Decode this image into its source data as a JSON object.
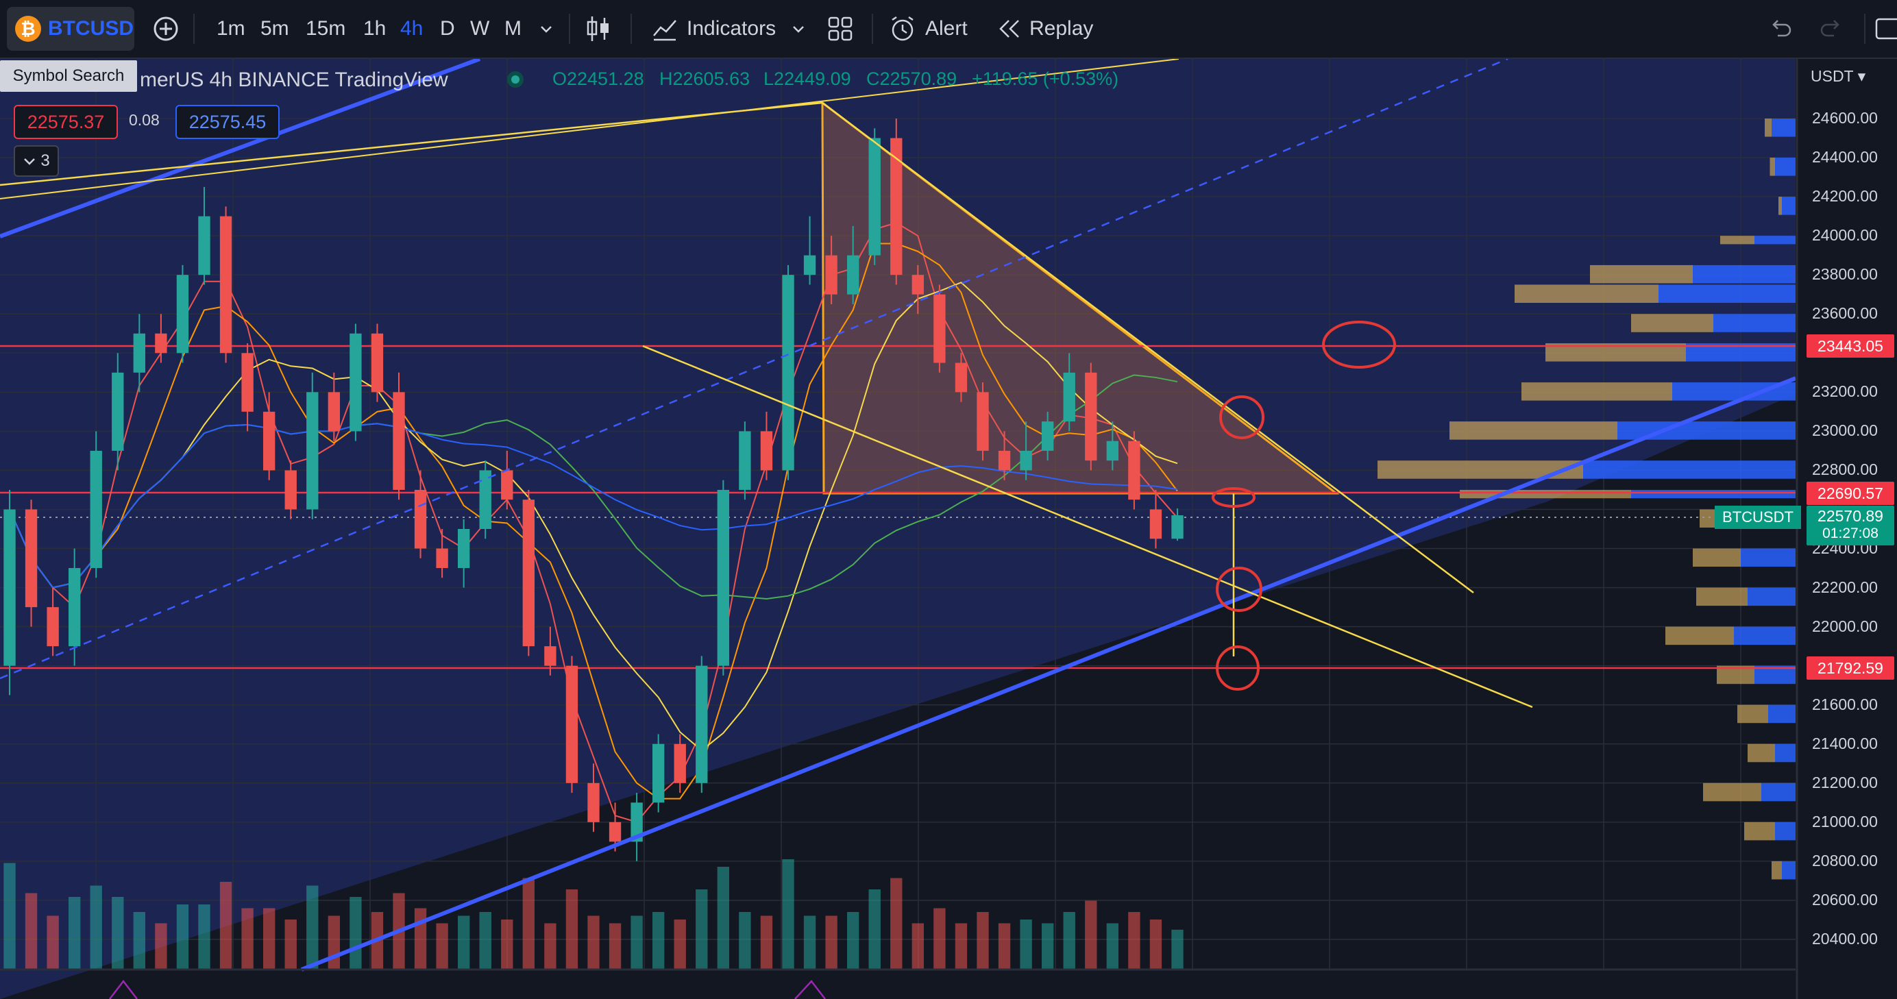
{
  "toolbar": {
    "symbol": "BTCUSD",
    "symbol_logo": "₿",
    "add_symbol_icon": "plus-circle-icon",
    "timeframes": [
      "1m",
      "5m",
      "15m",
      "1h",
      "4h",
      "D",
      "W",
      "M"
    ],
    "active_timeframe": "4h",
    "chart_type_icon": "candles-icon",
    "indicators_label": "Indicators",
    "alert_label": "Alert",
    "replay_label": "Replay"
  },
  "tooltip": "Symbol Search",
  "legend": {
    "title": "merUS  4h  BINANCE  TradingView",
    "open": "O22451.28",
    "high": "H22605.63",
    "low": "L22449.09",
    "close": "C22570.89",
    "change": "+119.65 (+0.53%)",
    "bid": "22575.37",
    "spread": "0.08",
    "ask": "22575.45",
    "indicators_count": "3"
  },
  "price_axis": {
    "currency": "USDT",
    "labels": [
      "24600.00",
      "24400.00",
      "24200.00",
      "24000.00",
      "23800.00",
      "23600.00",
      "23200.00",
      "23000.00",
      "22800.00",
      "22400.00",
      "22200.00",
      "22000.00",
      "21600.00",
      "21400.00",
      "21200.00",
      "21000.00",
      "20800.00",
      "20600.00",
      "20400.00"
    ],
    "tag_resistance": "23443.05",
    "tag_level2": "22690.57",
    "tag_last": "22570.89",
    "tag_timer": "01:27:08",
    "tag_support": "21792.59",
    "symbol_tag": "BTCUSDT"
  },
  "colors": {
    "up": "#26a69a",
    "down": "#ef5350",
    "accent": "#2962ff",
    "hline": "#f23645",
    "trend": "#f7d94c"
  },
  "chart_data": {
    "type": "candlestick",
    "symbol": "BTCUSDT",
    "interval": "4h",
    "ylim": [
      20300,
      24700
    ],
    "candles": [
      [
        21800,
        22600,
        21650,
        22700
      ],
      [
        22600,
        22100,
        22000,
        22650
      ],
      [
        22100,
        21900,
        21850,
        22200
      ],
      [
        21900,
        22300,
        21800,
        22400
      ],
      [
        22300,
        22900,
        22250,
        23000
      ],
      [
        22900,
        23300,
        22800,
        23400
      ],
      [
        23300,
        23500,
        23200,
        23600
      ],
      [
        23500,
        23400,
        23350,
        23600
      ],
      [
        23400,
        23800,
        23350,
        23850
      ],
      [
        23800,
        24100,
        23750,
        24250
      ],
      [
        24100,
        23400,
        23350,
        24150
      ],
      [
        23400,
        23100,
        23000,
        23450
      ],
      [
        23100,
        22800,
        22750,
        23200
      ],
      [
        22800,
        22600,
        22550,
        22850
      ],
      [
        22600,
        23200,
        22550,
        23300
      ],
      [
        23200,
        23000,
        22950,
        23300
      ],
      [
        23000,
        23500,
        22950,
        23550
      ],
      [
        23500,
        23200,
        23150,
        23550
      ],
      [
        23200,
        22700,
        22650,
        23300
      ],
      [
        22700,
        22400,
        22350,
        22800
      ],
      [
        22400,
        22300,
        22250,
        22500
      ],
      [
        22300,
        22500,
        22200,
        22550
      ],
      [
        22500,
        22800,
        22450,
        22850
      ],
      [
        22800,
        22650,
        22600,
        22900
      ],
      [
        22650,
        21900,
        21850,
        22700
      ],
      [
        21900,
        21800,
        21750,
        22000
      ],
      [
        21800,
        21200,
        21150,
        21850
      ],
      [
        21200,
        21000,
        20950,
        21300
      ],
      [
        21000,
        20900,
        20850,
        21100
      ],
      [
        20900,
        21100,
        20800,
        21150
      ],
      [
        21100,
        21400,
        21050,
        21450
      ],
      [
        21400,
        21200,
        21150,
        21450
      ],
      [
        21200,
        21800,
        21150,
        21850
      ],
      [
        21800,
        22700,
        21750,
        22750
      ],
      [
        22700,
        23000,
        22650,
        23050
      ],
      [
        23000,
        22800,
        22750,
        23100
      ],
      [
        22800,
        23800,
        22750,
        23850
      ],
      [
        23800,
        23900,
        23750,
        24100
      ],
      [
        23900,
        23700,
        23650,
        24000
      ],
      [
        23700,
        23900,
        23650,
        24050
      ],
      [
        23900,
        24500,
        23850,
        24550
      ],
      [
        24500,
        23800,
        23750,
        24600
      ],
      [
        23800,
        23700,
        23600,
        23850
      ],
      [
        23700,
        23350,
        23300,
        23750
      ],
      [
        23350,
        23200,
        23150,
        23400
      ],
      [
        23200,
        22900,
        22850,
        23250
      ],
      [
        22900,
        22800,
        22750,
        23000
      ],
      [
        22800,
        22900,
        22750,
        23050
      ],
      [
        22900,
        23050,
        22850,
        23100
      ],
      [
        23050,
        23300,
        23000,
        23400
      ],
      [
        23300,
        22850,
        22800,
        23350
      ],
      [
        22850,
        22950,
        22800,
        23050
      ],
      [
        22950,
        22650,
        22600,
        23000
      ],
      [
        22600,
        22450,
        22400,
        22700
      ],
      [
        22450,
        22570,
        22440,
        22605
      ]
    ],
    "horizontal_levels": [
      23443.05,
      22690.57,
      21792.59
    ]
  }
}
